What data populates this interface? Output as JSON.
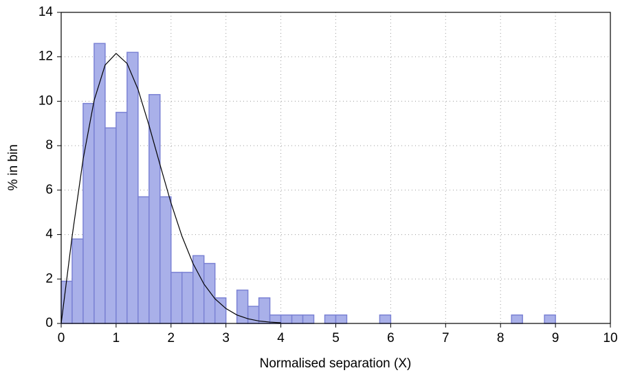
{
  "chart_data": {
    "type": "histogram",
    "xlabel": "Normalised separation  (X)",
    "ylabel": "% in bin",
    "bins": [
      0,
      0.2,
      0.4,
      0.6,
      0.8,
      1.0,
      1.2,
      1.4,
      1.6,
      1.8,
      2.0,
      2.2,
      2.4,
      2.6,
      2.8,
      3.0,
      3.2,
      3.4,
      3.6,
      3.8,
      4.0,
      4.2,
      4.4,
      4.6,
      4.8,
      5.0,
      5.2,
      5.4,
      5.6,
      5.8,
      6.0,
      6.2,
      6.4,
      6.6,
      6.8,
      7.0,
      7.2,
      7.4,
      7.6,
      7.8,
      8.0,
      8.2,
      8.4,
      8.6,
      8.8,
      9.0
    ],
    "values": [
      1.9,
      3.8,
      9.9,
      12.6,
      8.8,
      9.5,
      12.2,
      5.7,
      10.3,
      5.7,
      2.3,
      2.3,
      3.05,
      2.7,
      1.15,
      0,
      1.5,
      0.77,
      1.15,
      0.38,
      0.38,
      0.38,
      0.38,
      0,
      0.38,
      0.38,
      0,
      0,
      0,
      0.38,
      0,
      0,
      0,
      0,
      0,
      0,
      0,
      0,
      0,
      0,
      0,
      0.38,
      0,
      0,
      0.38
    ],
    "color": "#a9b0e9",
    "edge_color": "#7b82d4",
    "curve": {
      "color": "#000000",
      "x": [
        0,
        0.2,
        0.4,
        0.6,
        0.8,
        1.0,
        1.2,
        1.4,
        1.6,
        1.8,
        2.0,
        2.2,
        2.4,
        2.6,
        2.8,
        3.0,
        3.2,
        3.4,
        3.6,
        3.8,
        4.0
      ],
      "values": [
        0,
        3.93,
        7.4,
        10.04,
        11.63,
        12.15,
        11.7,
        10.53,
        8.91,
        7.14,
        5.42,
        3.92,
        2.7,
        1.77,
        1.11,
        0.67,
        0.38,
        0.21,
        0.11,
        0.06,
        0.03
      ]
    },
    "xlim": [
      0,
      10
    ],
    "xticks": [
      0,
      1,
      2,
      3,
      4,
      5,
      6,
      7,
      8,
      9,
      10
    ],
    "ylim": [
      0,
      14
    ],
    "yticks": [
      0,
      2,
      4,
      6,
      8,
      10,
      12,
      14
    ],
    "grid": true
  }
}
